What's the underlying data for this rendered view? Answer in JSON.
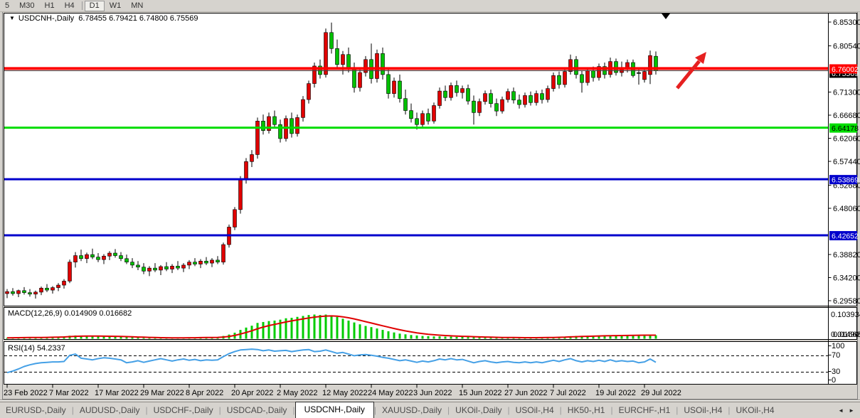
{
  "icons": {
    "dropdown": "▼",
    "tab_prev": "◄",
    "tab_next": "►"
  },
  "toolbar": {
    "timeframes": [
      {
        "label": "5",
        "active": false
      },
      {
        "label": "M30",
        "active": false
      },
      {
        "label": "H1",
        "active": false
      },
      {
        "label": "H4",
        "active": false
      },
      {
        "label": "D1",
        "active": true
      },
      {
        "label": "W1",
        "active": false
      },
      {
        "label": "MN",
        "active": false
      }
    ]
  },
  "chart": {
    "title": "USDCNH-,Daily",
    "ohlc_text": "6.78455 6.79421 6.74800 6.75569"
  },
  "indicators": {
    "macd_label": "MACD(12,26,9) 0.014909 0.016682",
    "rsi_label": "RSI(14) 54.2337"
  },
  "price_axis": {
    "ticks": [
      "6.85300",
      "6.80540",
      "6.71300",
      "6.66680",
      "6.62060",
      "6.57440",
      "6.52680",
      "6.48060",
      "6.38820",
      "6.34200",
      "6.29580"
    ],
    "macd_top_label": "0.103934",
    "macd_bottom_labels": [
      "0.014909",
      "0.016682"
    ],
    "rsi_labels": [
      "100",
      "70",
      "30",
      "0"
    ]
  },
  "hlines": [
    {
      "name": "resistance-line",
      "price": 6.76002,
      "label": "6.76002",
      "color": "#ff0000",
      "text_color": "#ffffff",
      "thickness": 4
    },
    {
      "name": "bid-price-line",
      "price": 6.75569,
      "label": "6.75569",
      "color": "#000000",
      "text_color": "#ffffff",
      "thickness": 1
    },
    {
      "name": "support-line-green",
      "price": 6.64178,
      "label": "6.64178",
      "color": "#00dd00",
      "text_color": "#000000",
      "thickness": 3
    },
    {
      "name": "support-line-blue-1",
      "price": 6.53869,
      "label": "6.53869",
      "color": "#0000cc",
      "text_color": "#ffffff",
      "thickness": 3
    },
    {
      "name": "support-line-blue-2",
      "price": 6.42652,
      "label": "6.42652",
      "color": "#0000cc",
      "text_color": "#ffffff",
      "thickness": 3
    }
  ],
  "annotations": [
    {
      "name": "trend-arrow",
      "type": "arrow-up-right",
      "color": "#e62020"
    },
    {
      "name": "top-marker",
      "type": "triangle-down",
      "color": "#000000"
    }
  ],
  "chart_data": {
    "type": "candlestick",
    "symbol": "USDCNH",
    "timeframe": "Daily",
    "y_axis_range": [
      6.2958,
      6.853
    ],
    "colors": {
      "bull": "#e00000",
      "bear": "#00c000",
      "doji": "#000000",
      "macd_hist": "#00cc00",
      "macd_signal": "#e00000",
      "rsi_line": "#45a0e6"
    },
    "rsi_levels": [
      70,
      30
    ],
    "x_labels": [
      {
        "bar": 0,
        "text": "23 Feb 2022"
      },
      {
        "bar": 8,
        "text": "7 Mar 2022"
      },
      {
        "bar": 16,
        "text": "17 Mar 2022"
      },
      {
        "bar": 24,
        "text": "29 Mar 2022"
      },
      {
        "bar": 32,
        "text": "8 Apr 2022"
      },
      {
        "bar": 40,
        "text": "20 Apr 2022"
      },
      {
        "bar": 48,
        "text": "2 May 2022"
      },
      {
        "bar": 56,
        "text": "12 May 2022"
      },
      {
        "bar": 64,
        "text": "24 May 2022"
      },
      {
        "bar": 72,
        "text": "3 Jun 2022"
      },
      {
        "bar": 80,
        "text": "15 Jun 2022"
      },
      {
        "bar": 88,
        "text": "27 Jun 2022"
      },
      {
        "bar": 96,
        "text": "7 Jul 2022"
      },
      {
        "bar": 104,
        "text": "19 Jul 2022"
      },
      {
        "bar": 112,
        "text": "29 Jul 2022"
      }
    ],
    "candles": [
      [
        6.31,
        6.319,
        6.301,
        6.314
      ],
      [
        6.314,
        6.321,
        6.306,
        6.31
      ],
      [
        6.31,
        6.318,
        6.303,
        6.316
      ],
      [
        6.316,
        6.323,
        6.308,
        6.312
      ],
      [
        6.312,
        6.319,
        6.304,
        6.309
      ],
      [
        6.309,
        6.316,
        6.3,
        6.313
      ],
      [
        6.313,
        6.324,
        6.307,
        6.321
      ],
      [
        6.321,
        6.329,
        6.313,
        6.317
      ],
      [
        6.317,
        6.325,
        6.31,
        6.322
      ],
      [
        6.322,
        6.331,
        6.315,
        6.327
      ],
      [
        6.327,
        6.339,
        6.32,
        6.335
      ],
      [
        6.335,
        6.378,
        6.331,
        6.373
      ],
      [
        6.373,
        6.393,
        6.362,
        6.386
      ],
      [
        6.386,
        6.398,
        6.375,
        6.38
      ],
      [
        6.38,
        6.392,
        6.371,
        6.388
      ],
      [
        6.388,
        6.4,
        6.379,
        6.383
      ],
      [
        6.383,
        6.391,
        6.373,
        6.378
      ],
      [
        6.378,
        6.389,
        6.369,
        6.385
      ],
      [
        6.385,
        6.395,
        6.377,
        6.391
      ],
      [
        6.391,
        6.399,
        6.382,
        6.386
      ],
      [
        6.386,
        6.393,
        6.375,
        6.38
      ],
      [
        6.38,
        6.388,
        6.369,
        6.373
      ],
      [
        6.373,
        6.381,
        6.361,
        6.367
      ],
      [
        6.367,
        6.375,
        6.357,
        6.363
      ],
      [
        6.363,
        6.371,
        6.349,
        6.355
      ],
      [
        6.355,
        6.365,
        6.345,
        6.361
      ],
      [
        6.361,
        6.371,
        6.353,
        6.357
      ],
      [
        6.357,
        6.367,
        6.347,
        6.364
      ],
      [
        6.364,
        6.373,
        6.355,
        6.359
      ],
      [
        6.359,
        6.369,
        6.351,
        6.365
      ],
      [
        6.365,
        6.375,
        6.357,
        6.361
      ],
      [
        6.361,
        6.371,
        6.353,
        6.367
      ],
      [
        6.367,
        6.377,
        6.359,
        6.373
      ],
      [
        6.373,
        6.381,
        6.365,
        6.369
      ],
      [
        6.369,
        6.379,
        6.361,
        6.375
      ],
      [
        6.375,
        6.383,
        6.367,
        6.371
      ],
      [
        6.371,
        6.381,
        6.363,
        6.377
      ],
      [
        6.377,
        6.385,
        6.369,
        6.373
      ],
      [
        6.373,
        6.412,
        6.368,
        6.408
      ],
      [
        6.408,
        6.448,
        6.402,
        6.443
      ],
      [
        6.443,
        6.483,
        6.437,
        6.478
      ],
      [
        6.478,
        6.545,
        6.47,
        6.538
      ],
      [
        6.538,
        6.581,
        6.53,
        6.574
      ],
      [
        6.574,
        6.597,
        6.563,
        6.588
      ],
      [
        6.588,
        6.662,
        6.58,
        6.655
      ],
      [
        6.655,
        6.668,
        6.628,
        6.636
      ],
      [
        6.636,
        6.672,
        6.63,
        6.664
      ],
      [
        6.664,
        6.676,
        6.64,
        6.648
      ],
      [
        6.648,
        6.658,
        6.612,
        6.62
      ],
      [
        6.62,
        6.666,
        6.614,
        6.66
      ],
      [
        6.66,
        6.672,
        6.622,
        6.63
      ],
      [
        6.63,
        6.668,
        6.624,
        6.662
      ],
      [
        6.662,
        6.705,
        6.654,
        6.698
      ],
      [
        6.698,
        6.736,
        6.69,
        6.73
      ],
      [
        6.73,
        6.772,
        6.722,
        6.765
      ],
      [
        6.765,
        6.778,
        6.74,
        6.748
      ],
      [
        6.748,
        6.84,
        6.742,
        6.832
      ],
      [
        6.832,
        6.852,
        6.79,
        6.8
      ],
      [
        6.8,
        6.818,
        6.758,
        6.768
      ],
      [
        6.768,
        6.795,
        6.748,
        6.788
      ],
      [
        6.788,
        6.802,
        6.752,
        6.76
      ],
      [
        6.76,
        6.772,
        6.712,
        6.722
      ],
      [
        6.722,
        6.76,
        6.714,
        6.752
      ],
      [
        6.752,
        6.785,
        6.744,
        6.778
      ],
      [
        6.778,
        6.81,
        6.73,
        6.74
      ],
      [
        6.74,
        6.798,
        6.732,
        6.79
      ],
      [
        6.79,
        6.802,
        6.738,
        6.748
      ],
      [
        6.748,
        6.76,
        6.7,
        6.71
      ],
      [
        6.71,
        6.742,
        6.702,
        6.735
      ],
      [
        6.735,
        6.748,
        6.692,
        6.7
      ],
      [
        6.7,
        6.718,
        6.668,
        6.676
      ],
      [
        6.676,
        6.69,
        6.652,
        6.66
      ],
      [
        6.66,
        6.672,
        6.638,
        6.648
      ],
      [
        6.648,
        6.676,
        6.642,
        6.67
      ],
      [
        6.67,
        6.68,
        6.648,
        6.655
      ],
      [
        6.655,
        6.692,
        6.65,
        6.686
      ],
      [
        6.686,
        6.722,
        6.68,
        6.715
      ],
      [
        6.715,
        6.726,
        6.695,
        6.702
      ],
      [
        6.702,
        6.732,
        6.696,
        6.726
      ],
      [
        6.726,
        6.736,
        6.704,
        6.712
      ],
      [
        6.712,
        6.726,
        6.7,
        6.72
      ],
      [
        6.72,
        6.728,
        6.688,
        6.695
      ],
      [
        6.695,
        6.706,
        6.648,
        6.672
      ],
      [
        6.672,
        6.7,
        6.665,
        6.694
      ],
      [
        6.694,
        6.716,
        6.688,
        6.71
      ],
      [
        6.71,
        6.718,
        6.682,
        6.69
      ],
      [
        6.69,
        6.7,
        6.665,
        6.675
      ],
      [
        6.675,
        6.704,
        6.67,
        6.698
      ],
      [
        6.698,
        6.72,
        6.692,
        6.714
      ],
      [
        6.714,
        6.722,
        6.69,
        6.697
      ],
      [
        6.697,
        6.708,
        6.68,
        6.688
      ],
      [
        6.688,
        6.712,
        6.682,
        6.706
      ],
      [
        6.706,
        6.714,
        6.686,
        6.692
      ],
      [
        6.692,
        6.716,
        6.686,
        6.71
      ],
      [
        6.71,
        6.718,
        6.69,
        6.698
      ],
      [
        6.698,
        6.726,
        6.692,
        6.72
      ],
      [
        6.72,
        6.752,
        6.714,
        6.746
      ],
      [
        6.746,
        6.754,
        6.72,
        6.728
      ],
      [
        6.728,
        6.76,
        6.722,
        6.754
      ],
      [
        6.754,
        6.788,
        6.748,
        6.778
      ],
      [
        6.778,
        6.785,
        6.74,
        6.748
      ],
      [
        6.748,
        6.756,
        6.712,
        6.732
      ],
      [
        6.732,
        6.762,
        6.726,
        6.756
      ],
      [
        6.756,
        6.764,
        6.734,
        6.742
      ],
      [
        6.742,
        6.77,
        6.736,
        6.764
      ],
      [
        6.764,
        6.772,
        6.74,
        6.748
      ],
      [
        6.748,
        6.782,
        6.742,
        6.774
      ],
      [
        6.774,
        6.78,
        6.746,
        6.752
      ],
      [
        6.752,
        6.774,
        6.744,
        6.76
      ],
      [
        6.76,
        6.778,
        6.752,
        6.772
      ],
      [
        6.772,
        6.778,
        6.742,
        6.746
      ],
      [
        6.75,
        6.762,
        6.728,
        6.751
      ],
      [
        6.738,
        6.757,
        6.732,
        6.754
      ],
      [
        6.748,
        6.796,
        6.729,
        6.786
      ],
      [
        6.78455,
        6.79421,
        6.748,
        6.75569
      ]
    ],
    "macd_histogram": [
      0.004,
      0.005,
      0.005,
      0.006,
      0.006,
      0.005,
      0.006,
      0.007,
      0.008,
      0.009,
      0.01,
      0.013,
      0.014,
      0.013,
      0.012,
      0.012,
      0.011,
      0.01,
      0.01,
      0.009,
      0.008,
      0.007,
      0.006,
      0.005,
      0.004,
      0.004,
      0.003,
      0.003,
      0.003,
      0.003,
      0.004,
      0.004,
      0.005,
      0.005,
      0.006,
      0.006,
      0.007,
      0.007,
      0.012,
      0.018,
      0.026,
      0.038,
      0.048,
      0.056,
      0.068,
      0.072,
      0.076,
      0.078,
      0.082,
      0.088,
      0.09,
      0.094,
      0.098,
      0.102,
      0.104,
      0.102,
      0.104,
      0.1,
      0.094,
      0.086,
      0.078,
      0.07,
      0.062,
      0.055,
      0.05,
      0.044,
      0.038,
      0.032,
      0.027,
      0.022,
      0.019,
      0.016,
      0.014,
      0.012,
      0.011,
      0.01,
      0.01,
      0.009,
      0.009,
      0.008,
      0.008,
      0.007,
      0.006,
      0.006,
      0.005,
      0.005,
      0.004,
      0.004,
      0.005,
      0.005,
      0.004,
      0.004,
      0.004,
      0.005,
      0.005,
      0.006,
      0.007,
      0.008,
      0.009,
      0.011,
      0.012,
      0.012,
      0.013,
      0.013,
      0.014,
      0.014,
      0.015,
      0.015,
      0.015,
      0.015,
      0.016,
      0.016,
      0.016,
      0.016,
      0.015
    ],
    "rsi_values": [
      29,
      33,
      38,
      44,
      48,
      51,
      53,
      54,
      55,
      55,
      56,
      71,
      74,
      64,
      62,
      60,
      63,
      65,
      64,
      62,
      60,
      53,
      55,
      58,
      54,
      57,
      60,
      63,
      60,
      57,
      60,
      62,
      59,
      61,
      58,
      60,
      59,
      60,
      68,
      75,
      80,
      84,
      85,
      86,
      85,
      82,
      84,
      81,
      82,
      83,
      80,
      82,
      84,
      85,
      80,
      81,
      84,
      80,
      76,
      78,
      74,
      70,
      72,
      73,
      71,
      69,
      66,
      64,
      61,
      58,
      60,
      57,
      54,
      57,
      55,
      58,
      62,
      60,
      63,
      60,
      61,
      57,
      53,
      56,
      58,
      55,
      53,
      55,
      56,
      54,
      53,
      55,
      53,
      55,
      53,
      56,
      59,
      56,
      60,
      63,
      58,
      55,
      58,
      56,
      59,
      56,
      60,
      56,
      58,
      56,
      57,
      53,
      55,
      62,
      54.2
    ]
  },
  "bottom_tabs": {
    "tabs": [
      {
        "label": "EURUSD-,Daily",
        "active": false
      },
      {
        "label": "AUDUSD-,Daily",
        "active": false
      },
      {
        "label": "USDCHF-,Daily",
        "active": false
      },
      {
        "label": "USDCAD-,Daily",
        "active": false
      },
      {
        "label": "USDCNH-,Daily",
        "active": true
      },
      {
        "label": "XAUUSD-,Daily",
        "active": false
      },
      {
        "label": "UKOil-,Daily",
        "active": false
      },
      {
        "label": "USOil-,H4",
        "active": false
      },
      {
        "label": "HK50-,H1",
        "active": false
      },
      {
        "label": "EURCHF-,H1",
        "active": false
      },
      {
        "label": "USOil-,H4",
        "active": false
      },
      {
        "label": "UKOil-,H4",
        "active": false
      }
    ]
  }
}
